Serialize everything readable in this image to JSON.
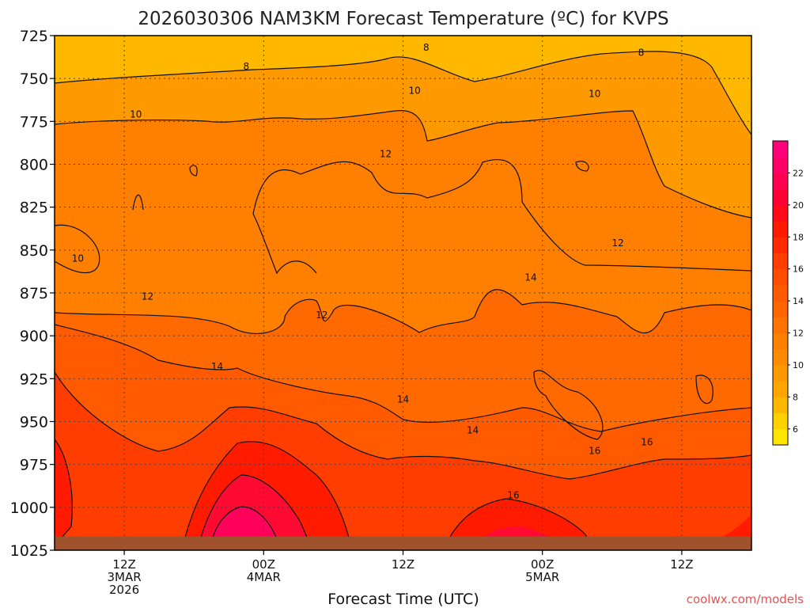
{
  "chart_data": {
    "type": "heatmap",
    "title": "2026030306 NAM3KM Forecast Temperature (ºC) for KVPS",
    "xlabel": "Forecast Time (UTC)",
    "ylabel": "",
    "x_ticks": [
      {
        "hour": 6,
        "lines": [
          "12Z",
          "3MAR",
          "2026"
        ]
      },
      {
        "hour": 18,
        "lines": [
          "00Z",
          "4MAR"
        ]
      },
      {
        "hour": 30,
        "lines": [
          "12Z"
        ]
      },
      {
        "hour": 42,
        "lines": [
          "00Z",
          "5MAR"
        ]
      },
      {
        "hour": 54,
        "lines": [
          "12Z"
        ]
      }
    ],
    "xlim_hours": [
      0,
      60
    ],
    "y_ticks": [
      "725",
      "750",
      "775",
      "800",
      "825",
      "850",
      "875",
      "900",
      "925",
      "950",
      "975",
      "1000",
      "1025"
    ],
    "ylim": [
      725,
      1025
    ],
    "grid": true,
    "colorbar": {
      "levels": [
        5,
        6,
        7,
        8,
        9,
        10,
        11,
        12,
        13,
        14,
        15,
        16,
        17,
        18,
        19,
        20,
        21,
        22,
        23,
        24
      ],
      "labels": [
        6,
        8,
        10,
        12,
        14,
        16,
        18,
        20,
        22
      ],
      "colors": [
        "#ffe600",
        "#ffd000",
        "#ffb800",
        "#ffa500",
        "#ff9900",
        "#ff8c00",
        "#ff7f00",
        "#ff7300",
        "#ff6600",
        "#ff5a00",
        "#ff4d00",
        "#ff3d00",
        "#ff2b00",
        "#ff1a00",
        "#ff0a1a",
        "#ff0033",
        "#ff0050",
        "#ff0068",
        "#ff007a"
      ]
    },
    "contour_levels": [
      8,
      10,
      12,
      14,
      16
    ],
    "contour_labels": [
      {
        "value": "8",
        "hour": 32,
        "p": 732
      },
      {
        "value": "8",
        "hour": 16.5,
        "p": 743
      },
      {
        "value": "8",
        "hour": 50.5,
        "p": 735
      },
      {
        "value": "10",
        "hour": 7,
        "p": 771
      },
      {
        "value": "10",
        "hour": 31,
        "p": 757
      },
      {
        "value": "10",
        "hour": 46.5,
        "p": 759
      },
      {
        "value": "10",
        "hour": 2,
        "p": 855
      },
      {
        "value": "12",
        "hour": 28.5,
        "p": 794
      },
      {
        "value": "12",
        "hour": 48.5,
        "p": 846
      },
      {
        "value": "12",
        "hour": 8,
        "p": 877
      },
      {
        "value": "12",
        "hour": 23,
        "p": 888
      },
      {
        "value": "14",
        "hour": 41,
        "p": 866
      },
      {
        "value": "14",
        "hour": 14,
        "p": 918
      },
      {
        "value": "14",
        "hour": 30,
        "p": 937
      },
      {
        "value": "14",
        "hour": 36,
        "p": 955
      },
      {
        "value": "16",
        "hour": 39.5,
        "p": 993
      },
      {
        "value": "16",
        "hour": 46.5,
        "p": 967
      },
      {
        "value": "16",
        "hour": 51,
        "p": 962
      }
    ],
    "ground": {
      "p_top": 1017,
      "color": "#a0522d"
    }
  },
  "footer": {
    "credit": "coolwx.com/models"
  }
}
